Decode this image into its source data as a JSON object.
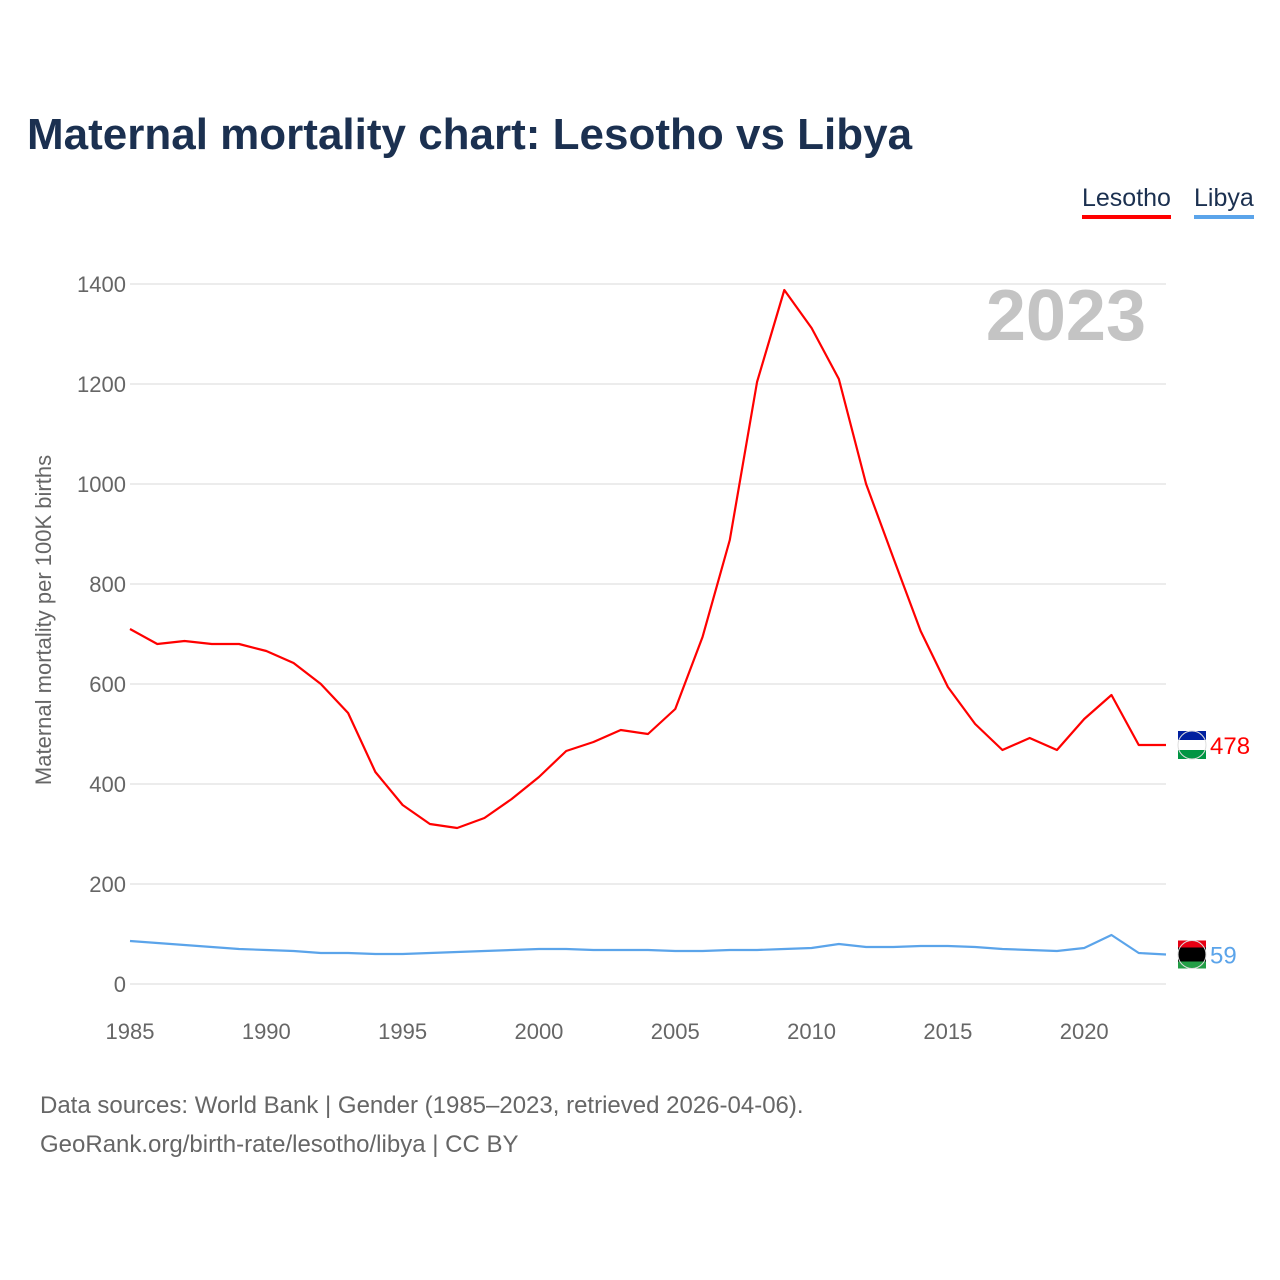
{
  "chart_data": {
    "type": "line",
    "title": "Maternal mortality chart: Lesotho vs Libya",
    "xlabel": "",
    "ylabel": "Maternal mortality per 100K births",
    "xlim": [
      1985,
      2023
    ],
    "ylim": [
      0,
      1400
    ],
    "yticks": [
      0,
      200,
      400,
      600,
      800,
      1000,
      1200,
      1400
    ],
    "xticks": [
      1985,
      1990,
      1995,
      2000,
      2005,
      2010,
      2015,
      2020
    ],
    "grid": true,
    "legend_position": "top-right",
    "year_label": "2023",
    "x": [
      1985,
      1986,
      1987,
      1988,
      1989,
      1990,
      1991,
      1992,
      1993,
      1994,
      1995,
      1996,
      1997,
      1998,
      1999,
      2000,
      2001,
      2002,
      2003,
      2004,
      2005,
      2006,
      2007,
      2008,
      2009,
      2010,
      2011,
      2012,
      2013,
      2014,
      2015,
      2016,
      2017,
      2018,
      2019,
      2020,
      2021,
      2022,
      2023
    ],
    "series": [
      {
        "name": "Lesotho",
        "color": "#ff0000",
        "end_label": "478",
        "flag": "lesotho-flag",
        "values": [
          710,
          680,
          686,
          680,
          680,
          666,
          642,
          600,
          542,
          424,
          358,
          320,
          312,
          332,
          370,
          414,
          466,
          484,
          508,
          500,
          550,
          694,
          888,
          1204,
          1388,
          1312,
          1210,
          1000,
          852,
          706,
          594,
          520,
          468,
          492,
          468,
          530,
          578,
          478,
          478
        ]
      },
      {
        "name": "Libya",
        "color": "#5ba4ea",
        "end_label": "59",
        "flag": "libya-flag",
        "values": [
          86,
          82,
          78,
          74,
          70,
          68,
          66,
          62,
          62,
          60,
          60,
          62,
          64,
          66,
          68,
          70,
          70,
          68,
          68,
          68,
          66,
          66,
          68,
          68,
          70,
          72,
          80,
          74,
          74,
          76,
          76,
          74,
          70,
          68,
          66,
          72,
          98,
          62,
          59
        ]
      }
    ]
  },
  "footer": {
    "line1": "Data sources: World Bank | Gender (1985–2023, retrieved 2026-04-06).",
    "line2": "GeoRank.org/birth-rate/lesotho/libya | CC BY"
  }
}
